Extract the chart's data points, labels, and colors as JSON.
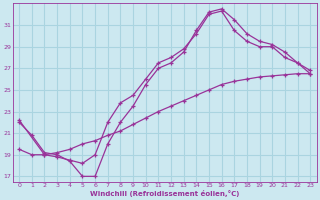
{
  "xlabel": "Windchill (Refroidissement éolien,°C)",
  "bg_color": "#cce8f0",
  "line_color": "#993399",
  "grid_color": "#aad4e0",
  "xlim": [
    -0.5,
    23.5
  ],
  "ylim": [
    16.5,
    33.0
  ],
  "xticks": [
    0,
    1,
    2,
    3,
    4,
    5,
    6,
    7,
    8,
    9,
    10,
    11,
    12,
    13,
    14,
    15,
    16,
    17,
    18,
    19,
    20,
    21,
    22,
    23
  ],
  "yticks": [
    17,
    19,
    21,
    23,
    25,
    27,
    29,
    31
  ],
  "line1_x": [
    0,
    1,
    2,
    3,
    4,
    5,
    6,
    7,
    8,
    9,
    10,
    11,
    12,
    13,
    14,
    15,
    16,
    17,
    18,
    19,
    20,
    21,
    22,
    23
  ],
  "line1_y": [
    22.0,
    20.8,
    19.2,
    19.0,
    18.4,
    17.0,
    17.0,
    20.0,
    22.0,
    23.5,
    25.5,
    27.0,
    27.5,
    28.5,
    30.5,
    32.2,
    32.5,
    31.5,
    30.2,
    29.5,
    29.2,
    28.5,
    27.5,
    26.5
  ],
  "line2_x": [
    0,
    1,
    2,
    3,
    4,
    5,
    6,
    7,
    8,
    9,
    10,
    11,
    12,
    13,
    14,
    15,
    16,
    17,
    18,
    19,
    20,
    21,
    22,
    23
  ],
  "line2_y": [
    19.5,
    19.0,
    19.0,
    19.2,
    19.5,
    20.0,
    20.3,
    20.8,
    21.2,
    21.8,
    22.4,
    23.0,
    23.5,
    24.0,
    24.5,
    25.0,
    25.5,
    25.8,
    26.0,
    26.2,
    26.3,
    26.4,
    26.5,
    26.5
  ],
  "line3_x": [
    0,
    2,
    3,
    4,
    5,
    6,
    7,
    8,
    9,
    10,
    11,
    12,
    13,
    14,
    15,
    16,
    17,
    18,
    19,
    20,
    21,
    22,
    23
  ],
  "line3_y": [
    22.2,
    19.0,
    18.8,
    18.5,
    18.2,
    19.0,
    22.0,
    23.8,
    24.5,
    26.0,
    27.5,
    28.0,
    28.8,
    30.2,
    32.0,
    32.3,
    30.5,
    29.5,
    29.0,
    29.0,
    28.0,
    27.5,
    26.8
  ]
}
